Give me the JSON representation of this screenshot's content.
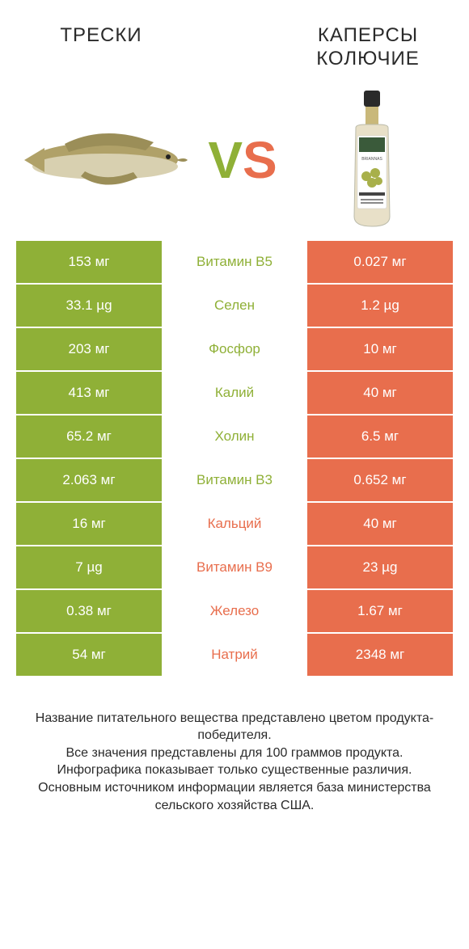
{
  "colors": {
    "green": "#8fb037",
    "orange": "#e86e4d",
    "vs_v": "#8fb037",
    "vs_s": "#e86e4d",
    "text": "#2a2a2a"
  },
  "header": {
    "left": "ТРЕСКИ",
    "right": "КАПЕРСЫ КОЛЮЧИЕ"
  },
  "vs": {
    "v": "V",
    "s": "S"
  },
  "rows": [
    {
      "left": "153 мг",
      "mid": "Витамин B5",
      "right": "0.027 мг",
      "winner": "left"
    },
    {
      "left": "33.1 µg",
      "mid": "Селен",
      "right": "1.2 µg",
      "winner": "left"
    },
    {
      "left": "203 мг",
      "mid": "Фосфор",
      "right": "10 мг",
      "winner": "left"
    },
    {
      "left": "413 мг",
      "mid": "Калий",
      "right": "40 мг",
      "winner": "left"
    },
    {
      "left": "65.2 мг",
      "mid": "Холин",
      "right": "6.5 мг",
      "winner": "left"
    },
    {
      "left": "2.063 мг",
      "mid": "Витамин B3",
      "right": "0.652 мг",
      "winner": "left"
    },
    {
      "left": "16 мг",
      "mid": "Кальций",
      "right": "40 мг",
      "winner": "right"
    },
    {
      "left": "7 µg",
      "mid": "Витамин B9",
      "right": "23 µg",
      "winner": "right"
    },
    {
      "left": "0.38 мг",
      "mid": "Железо",
      "right": "1.67 мг",
      "winner": "right"
    },
    {
      "left": "54 мг",
      "mid": "Натрий",
      "right": "2348 мг",
      "winner": "right"
    }
  ],
  "footer": [
    "Название питательного вещества представлено цветом продукта-победителя.",
    "Все значения представлены для 100 граммов продукта.",
    "Инфографика показывает только существенные различия.",
    "Основным источником информации является база министерства сельского хозяйства США."
  ]
}
